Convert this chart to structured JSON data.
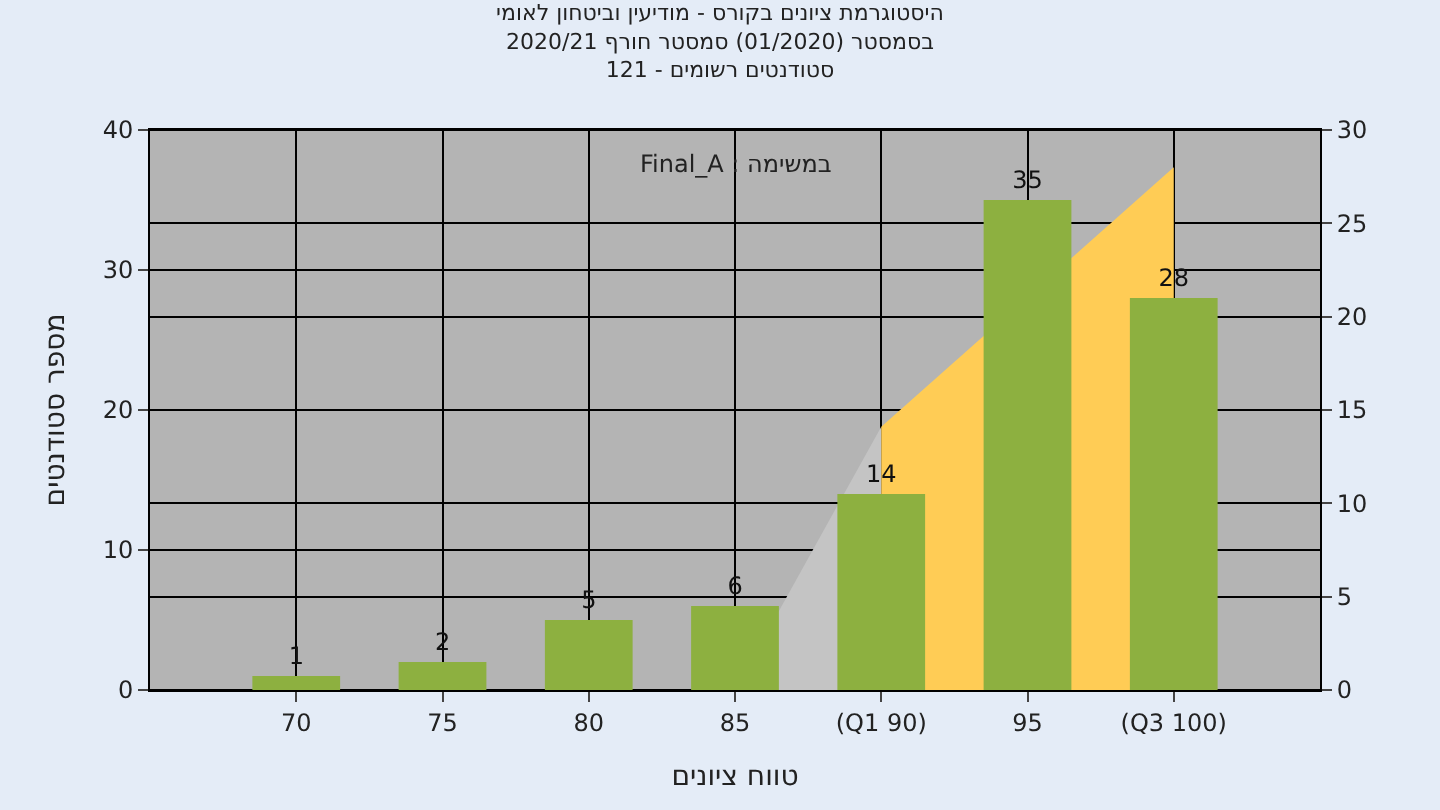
{
  "chart_data": {
    "type": "bar",
    "title": "היסטוגרמת ציונים בקורס - מודיעין וביטחון לאומי",
    "subtitle": "בסמסטר (01/2020) סמסטר חורף 2020/21\nסטודנטים רשומים - 121",
    "xlabel": "טווח ציונים",
    "ylabel": "מספר סטודנטים",
    "annotations": [
      "Final_A : במשימה"
    ],
    "categories": [
      "70",
      "75",
      "80",
      "85",
      "(Q1 90)",
      "95",
      "(Q3 100)"
    ],
    "series": [
      {
        "type": "area",
        "axis": "y2",
        "color": "#c4c4c4",
        "values": [
          null,
          null,
          null,
          0,
          14.1,
          null,
          null
        ]
      },
      {
        "type": "area",
        "axis": "y2",
        "color": "#ffcc55",
        "values": [
          null,
          null,
          null,
          null,
          14.1,
          null,
          28
        ]
      },
      {
        "color": "#8db040",
        "values": [
          1,
          2,
          5,
          6,
          14,
          35,
          28
        ],
        "value_labels": [
          "1",
          "2",
          "5",
          "6",
          "14",
          "35",
          "28"
        ]
      }
    ],
    "ylim": [
      0,
      40
    ],
    "yticks": [
      0,
      10,
      20,
      30,
      40
    ],
    "y2lim": [
      0,
      30
    ],
    "y2ticks": [
      0,
      5,
      10,
      15,
      20,
      25,
      30
    ],
    "grid": true
  }
}
